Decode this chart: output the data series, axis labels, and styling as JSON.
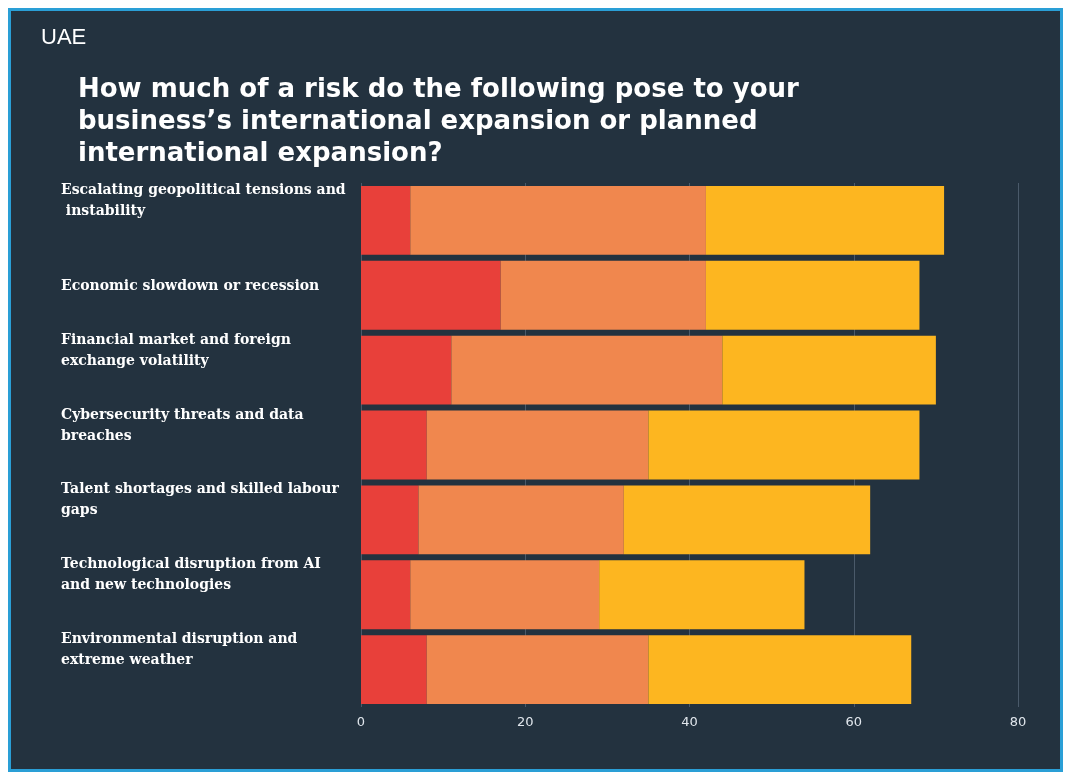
{
  "chart_data": {
    "type": "bar",
    "orientation": "horizontal",
    "stacked": true,
    "title": "How much of a risk do the following pose to your business’s international expansion or planned international expansion?",
    "annotations": [
      "UAE"
    ],
    "categories": [
      "Escalating geopolitical tensions and instability",
      "Economic slowdown or recession",
      "Financial market and foreign exchange volatility",
      "Cybersecurity threats and data breaches",
      "Talent shortages and skilled labour gaps",
      "Technological disruption from AI and new technologies",
      "Environmental disruption and extreme weather"
    ],
    "series": [
      {
        "color": "#e8403a",
        "values": [
          6,
          17,
          11,
          8,
          7,
          6,
          8
        ]
      },
      {
        "color": "#f0874e",
        "values": [
          36,
          25,
          33,
          27,
          25,
          23,
          27
        ]
      },
      {
        "color": "#fdb620",
        "values": [
          29,
          26,
          26,
          33,
          30,
          25,
          32
        ]
      }
    ],
    "xlim": [
      0,
      80
    ],
    "xticks": [
      0,
      20,
      40,
      60,
      80
    ],
    "grid": "x"
  }
}
